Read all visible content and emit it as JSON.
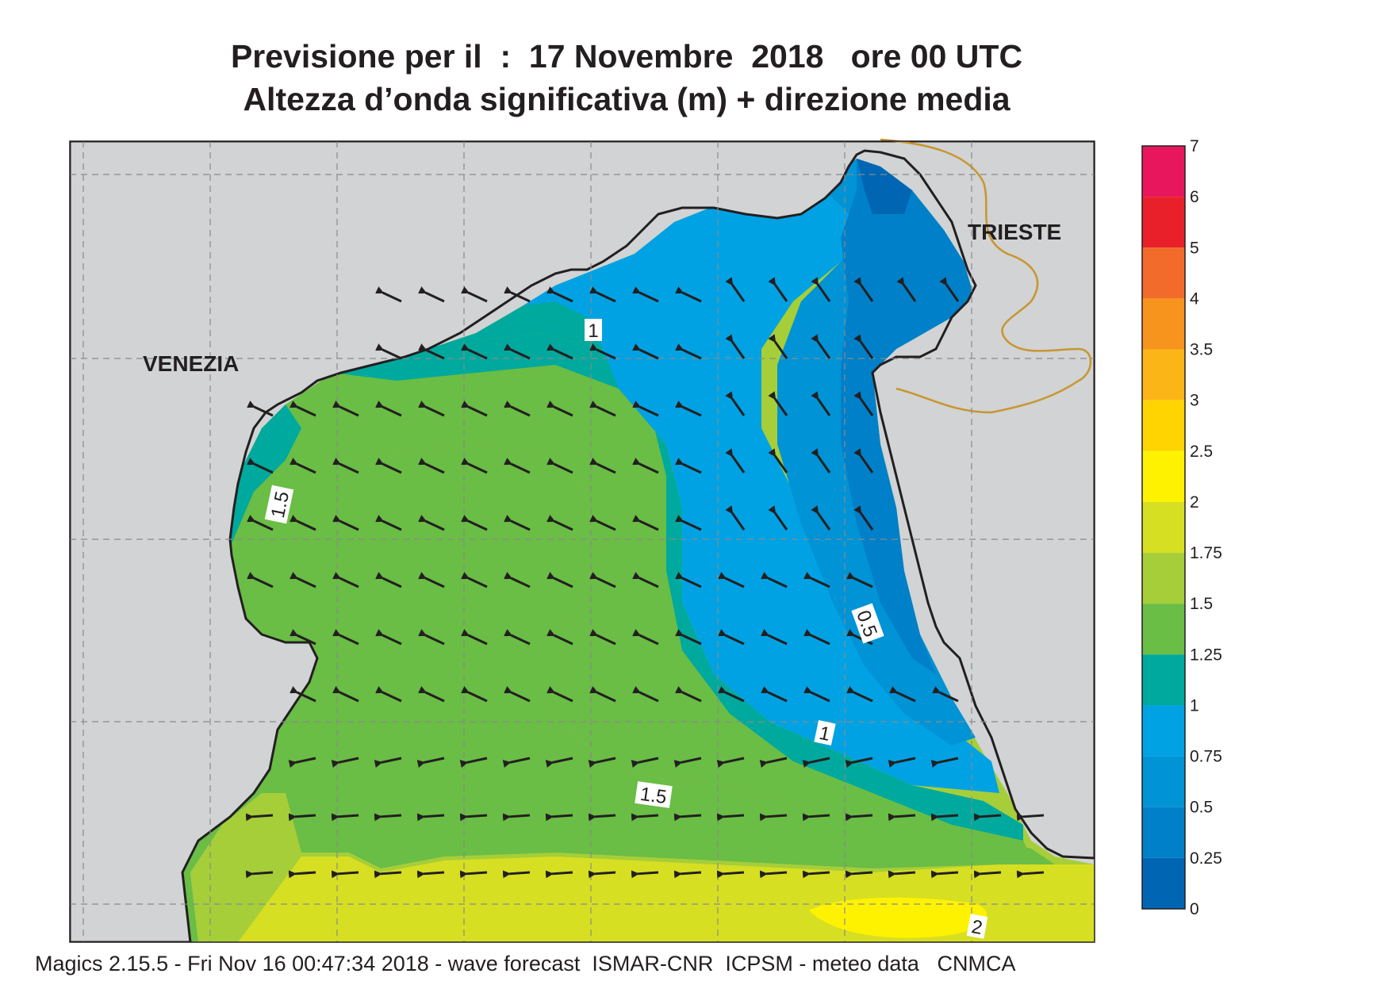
{
  "title": {
    "line1": "Previsione per il  :  17 Novembre  2018   ore 00 UTC",
    "line2": "Altezza d’onda significativa (m) + direzione media"
  },
  "footer": "Magics 2.15.5 - Fri Nov 16 00:47:34 2018 - wave forecast  ISMAR-CNR  ICPSM - meteo data   CNMCA",
  "places": {
    "venezia": "VENEZIA",
    "trieste": "TRIESTE"
  },
  "contour_labels": [
    "1",
    "1.5",
    "0.5",
    "1",
    "1.5",
    "2"
  ],
  "legend": {
    "levels": [
      {
        "label": "7",
        "color": ""
      },
      {
        "label": "6",
        "color": "#e8175d"
      },
      {
        "label": "5",
        "color": "#e9202a"
      },
      {
        "label": "4",
        "color": "#f26b2a"
      },
      {
        "label": "3.5",
        "color": "#f7941d"
      },
      {
        "label": "3",
        "color": "#fbb517"
      },
      {
        "label": "2.5",
        "color": "#ffd400"
      },
      {
        "label": "2",
        "color": "#fff200"
      },
      {
        "label": "1.75",
        "color": "#d7df23"
      },
      {
        "label": "1.5",
        "color": "#a6ce39"
      },
      {
        "label": "1.25",
        "color": "#6abd45"
      },
      {
        "label": "1",
        "color": "#00a99d"
      },
      {
        "label": "0.75",
        "color": "#00a2e3"
      },
      {
        "label": "0.5",
        "color": "#0093d5"
      },
      {
        "label": "0.25",
        "color": "#0080c8"
      },
      {
        "label": "0",
        "color": "#0066b3"
      }
    ]
  },
  "colors": {
    "land": "#d1d3d4",
    "coast": "#231f20",
    "border": "#c8962e",
    "grid": "#8a8a8a",
    "arrow": "#231f20"
  }
}
